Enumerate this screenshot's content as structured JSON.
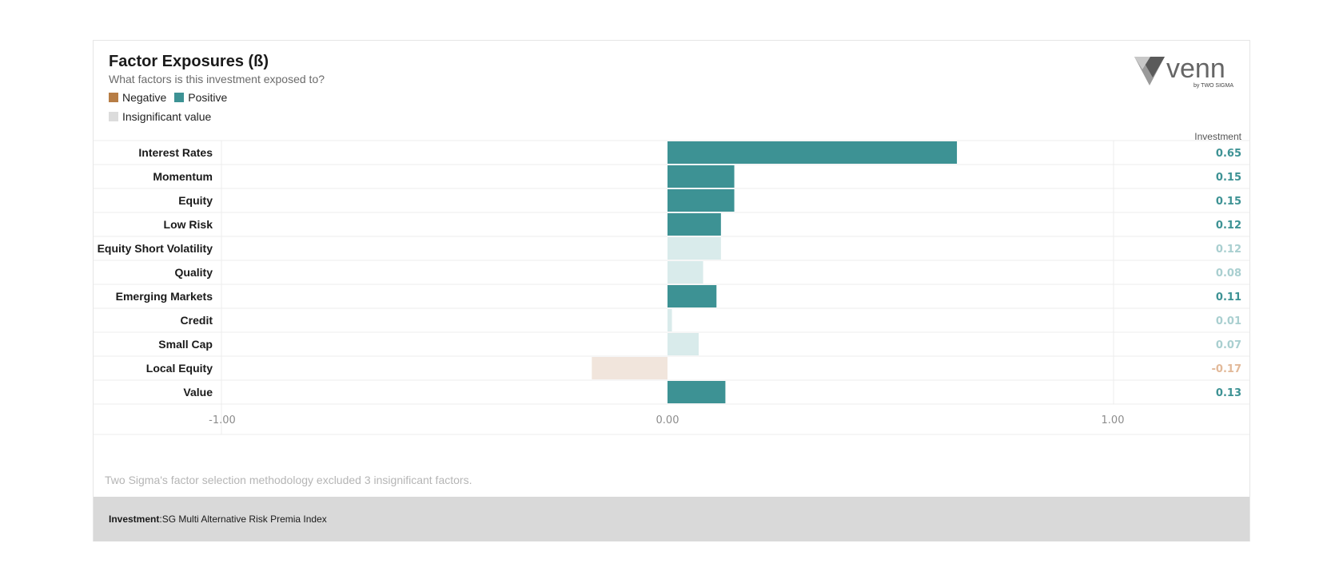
{
  "header": {
    "title": "Factor Exposures (ß)",
    "subtitle": "What factors is this investment exposed to?"
  },
  "legend": {
    "negative": "Negative",
    "positive": "Positive",
    "insignificant": "Insignificant value"
  },
  "logo": {
    "brand": "venn",
    "byline": "by TWO SIGMA"
  },
  "column_header": "Investment",
  "colors": {
    "positive": "#3d9294",
    "negative": "#b77d45",
    "positive_insignificant": "#d9ebeb",
    "negative_insignificant": "#f1e5dc",
    "insignificant_swatch": "#dcdcdc"
  },
  "chart_data": {
    "type": "bar",
    "orientation": "horizontal",
    "categories": [
      "Interest Rates",
      "Momentum",
      "Equity",
      "Low Risk",
      "Equity Short Volatility",
      "Quality",
      "Emerging Markets",
      "Credit",
      "Small Cap",
      "Local Equity",
      "Value"
    ],
    "values": [
      0.65,
      0.15,
      0.15,
      0.12,
      0.12,
      0.08,
      0.11,
      0.01,
      0.07,
      -0.17,
      0.13
    ],
    "value_labels": [
      "0.65",
      "0.15",
      "0.15",
      "0.12",
      "0.12",
      "0.08",
      "0.11",
      "0.01",
      "0.07",
      "-0.17",
      "0.13"
    ],
    "significant": [
      true,
      true,
      true,
      true,
      false,
      false,
      true,
      false,
      false,
      false,
      true
    ],
    "xlim": [
      -1,
      1
    ],
    "xticks": [
      "-1.00",
      "0.00",
      "1.00"
    ],
    "grid": false
  },
  "footnote": "Two Sigma's factor selection methodology excluded 3 insignificant factors.",
  "footer": {
    "label": "Investment",
    "separator": " : ",
    "value": "SG Multi Alternative Risk Premia Index"
  }
}
